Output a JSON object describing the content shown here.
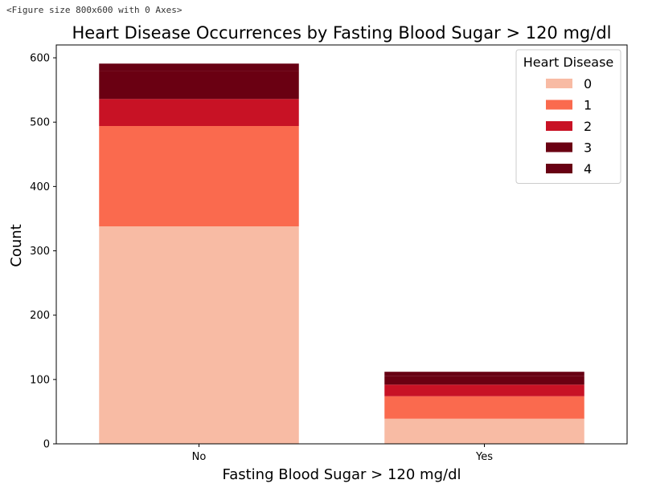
{
  "figure_caption": "<Figure size 800x600 with 0 Axes>",
  "chart_data": {
    "type": "bar",
    "stacked": true,
    "title": "Heart Disease Occurrences by Fasting Blood Sugar > 120 mg/dl",
    "xlabel": "Fasting Blood Sugar > 120 mg/dl",
    "ylabel": "Count",
    "categories": [
      "No",
      "Yes"
    ],
    "ylim": [
      0,
      620
    ],
    "yticks": [
      0,
      100,
      200,
      300,
      400,
      500,
      600
    ],
    "legend": {
      "title": "Heart Disease",
      "position": "top-right"
    },
    "series": [
      {
        "name": "0",
        "color": "#f8bba4",
        "values": [
          338,
          39
        ]
      },
      {
        "name": "1",
        "color": "#fa6a4e",
        "values": [
          156,
          35
        ]
      },
      {
        "name": "2",
        "color": "#c81225",
        "values": [
          42,
          18
        ]
      },
      {
        "name": "3",
        "color": "#6a0012",
        "values": [
          44,
          13
        ]
      },
      {
        "name": "4",
        "color": "#680013",
        "values": [
          11,
          7
        ]
      }
    ]
  }
}
